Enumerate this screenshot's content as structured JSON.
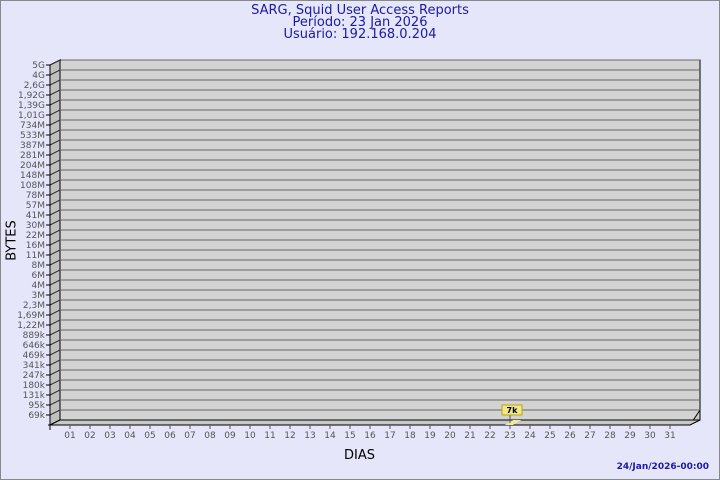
{
  "header": {
    "title": "SARG, Squid User Access Reports",
    "period": "Período: 23 Jan 2026",
    "user": "Usuário: 192.168.0.204"
  },
  "footer": {
    "timestamp": "24/Jan/2026-00:00"
  },
  "colors": {
    "background": "#e6e6fa",
    "wall": "#d3d3d3",
    "bar": "#f5e6a0",
    "title": "#1a1aa6"
  },
  "chart_data": {
    "type": "bar",
    "title": "SARG, Squid User Access Reports",
    "xlabel": "DIAS",
    "ylabel": "BYTES",
    "y_scale": "log",
    "grid": true,
    "y_tick_labels": [
      "5G",
      "4G",
      "2,6G",
      "1,92G",
      "1,39G",
      "1,01G",
      "734M",
      "533M",
      "387M",
      "281M",
      "204M",
      "148M",
      "108M",
      "78M",
      "57M",
      "41M",
      "30M",
      "22M",
      "16M",
      "11M",
      "8M",
      "6M",
      "4M",
      "3M",
      "2,3M",
      "1,69M",
      "1,22M",
      "889k",
      "646k",
      "469k",
      "341k",
      "247k",
      "180k",
      "131k",
      "95k",
      "69k"
    ],
    "categories": [
      "01",
      "02",
      "03",
      "04",
      "05",
      "06",
      "07",
      "08",
      "09",
      "10",
      "11",
      "12",
      "13",
      "14",
      "15",
      "16",
      "17",
      "18",
      "19",
      "20",
      "21",
      "22",
      "23",
      "24",
      "25",
      "26",
      "27",
      "28",
      "29",
      "30",
      "31"
    ],
    "series": [
      {
        "values": [
          null,
          null,
          null,
          null,
          null,
          null,
          null,
          null,
          null,
          null,
          null,
          null,
          null,
          null,
          null,
          null,
          null,
          null,
          null,
          null,
          null,
          null,
          7000,
          null,
          null,
          null,
          null,
          null,
          null,
          null,
          null
        ]
      }
    ],
    "data_labels": [
      {
        "category": "23",
        "label": "7k"
      }
    ]
  }
}
